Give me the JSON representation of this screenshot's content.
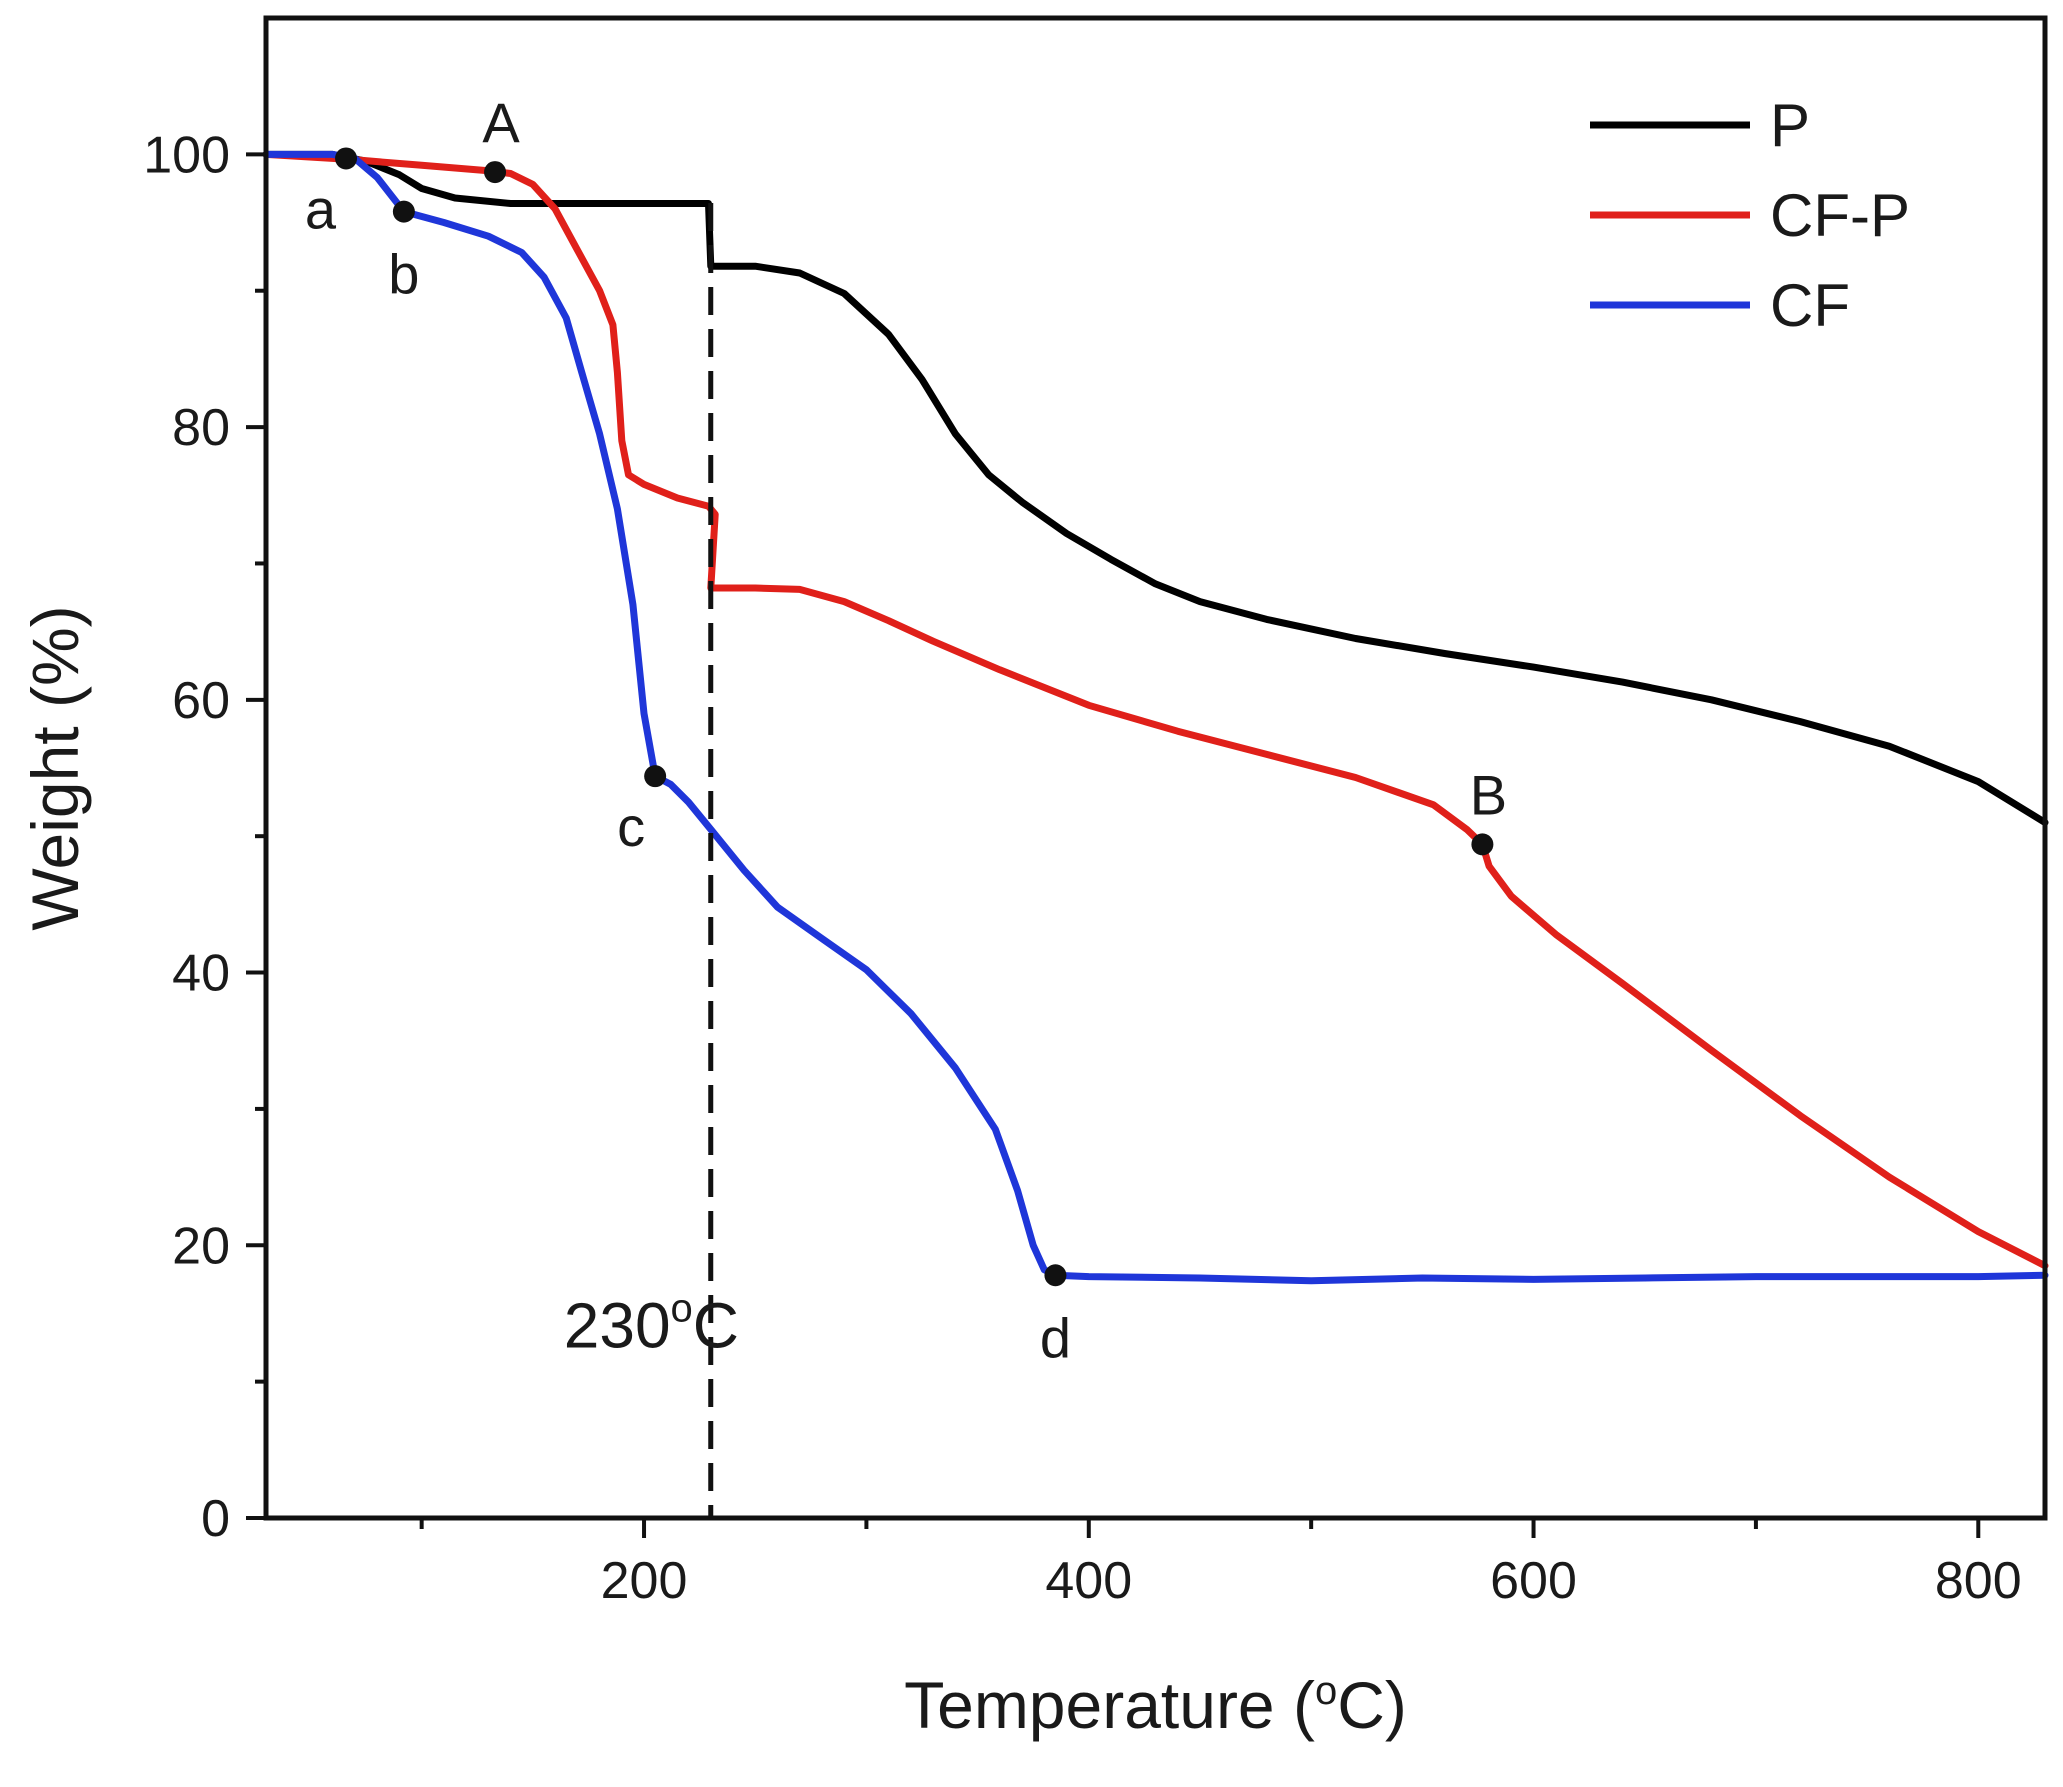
{
  "chart_data": {
    "type": "line",
    "title": "",
    "xlabel": "Temperature (",
    "xlabel_sup": "o",
    "xlabel_end": "C)",
    "ylabel": "Weight (%)",
    "xlim": [
      30,
      830
    ],
    "ylim": [
      0,
      110
    ],
    "xticks": [
      200,
      400,
      600,
      800
    ],
    "xticks_minor": [
      100,
      300,
      500,
      700
    ],
    "yticks": [
      0,
      20,
      40,
      60,
      80,
      100
    ],
    "legend": {
      "position": "top-right"
    },
    "reference_line": {
      "x": 230,
      "label": "230",
      "label_sup": "o",
      "label_end": "C",
      "style": "dashed"
    },
    "series": [
      {
        "name": "P",
        "color": "#000000",
        "points": [
          [
            30,
            100
          ],
          [
            60,
            100
          ],
          [
            75,
            99.5
          ],
          [
            90,
            98.5
          ],
          [
            100,
            97.5
          ],
          [
            115,
            96.8
          ],
          [
            140,
            96.4
          ],
          [
            180,
            96.4
          ],
          [
            229,
            96.4
          ],
          [
            230,
            91.8
          ],
          [
            250,
            91.8
          ],
          [
            270,
            91.3
          ],
          [
            290,
            89.8
          ],
          [
            310,
            86.8
          ],
          [
            325,
            83.5
          ],
          [
            340,
            79.5
          ],
          [
            355,
            76.5
          ],
          [
            370,
            74.5
          ],
          [
            390,
            72.2
          ],
          [
            410,
            70.3
          ],
          [
            430,
            68.5
          ],
          [
            450,
            67.2
          ],
          [
            480,
            65.9
          ],
          [
            520,
            64.5
          ],
          [
            560,
            63.4
          ],
          [
            600,
            62.4
          ],
          [
            640,
            61.3
          ],
          [
            680,
            60
          ],
          [
            720,
            58.4
          ],
          [
            760,
            56.6
          ],
          [
            800,
            54
          ],
          [
            830,
            51
          ]
        ]
      },
      {
        "name": "CF-P",
        "color": "#e0201a",
        "points": [
          [
            30,
            100
          ],
          [
            70,
            99.6
          ],
          [
            100,
            99.2
          ],
          [
            130,
            98.8
          ],
          [
            140,
            98.6
          ],
          [
            150,
            97.8
          ],
          [
            160,
            96
          ],
          [
            170,
            93
          ],
          [
            180,
            90
          ],
          [
            186,
            87.5
          ],
          [
            188,
            84
          ],
          [
            190,
            79
          ],
          [
            193,
            76.5
          ],
          [
            200,
            75.8
          ],
          [
            215,
            74.8
          ],
          [
            229,
            74.2
          ],
          [
            232,
            73.6
          ],
          [
            230,
            68.2
          ],
          [
            250,
            68.2
          ],
          [
            270,
            68.1
          ],
          [
            290,
            67.2
          ],
          [
            310,
            65.8
          ],
          [
            330,
            64.3
          ],
          [
            360,
            62.2
          ],
          [
            400,
            59.6
          ],
          [
            440,
            57.7
          ],
          [
            480,
            56
          ],
          [
            520,
            54.3
          ],
          [
            555,
            52.3
          ],
          [
            570,
            50.5
          ],
          [
            577,
            49.4
          ],
          [
            580,
            47.8
          ],
          [
            590,
            45.6
          ],
          [
            610,
            42.8
          ],
          [
            640,
            39.2
          ],
          [
            680,
            34.3
          ],
          [
            720,
            29.5
          ],
          [
            760,
            25
          ],
          [
            800,
            21
          ],
          [
            830,
            18.5
          ]
        ]
      },
      {
        "name": "CF",
        "color": "#1f36d9",
        "points": [
          [
            30,
            100
          ],
          [
            60,
            100
          ],
          [
            70,
            99.7
          ],
          [
            80,
            98.3
          ],
          [
            92,
            95.8
          ],
          [
            110,
            95
          ],
          [
            130,
            94
          ],
          [
            145,
            92.8
          ],
          [
            155,
            91
          ],
          [
            165,
            88
          ],
          [
            172,
            84
          ],
          [
            180,
            79.5
          ],
          [
            188,
            74
          ],
          [
            195,
            67
          ],
          [
            200,
            59
          ],
          [
            205,
            54.4
          ],
          [
            212,
            53.8
          ],
          [
            220,
            52.5
          ],
          [
            230,
            50.5
          ],
          [
            245,
            47.5
          ],
          [
            260,
            44.8
          ],
          [
            280,
            42.5
          ],
          [
            300,
            40.2
          ],
          [
            320,
            37
          ],
          [
            340,
            33
          ],
          [
            358,
            28.5
          ],
          [
            368,
            24
          ],
          [
            375,
            20
          ],
          [
            380,
            18.2
          ],
          [
            385,
            17.8
          ],
          [
            400,
            17.7
          ],
          [
            450,
            17.6
          ],
          [
            500,
            17.4
          ],
          [
            550,
            17.6
          ],
          [
            600,
            17.5
          ],
          [
            650,
            17.6
          ],
          [
            700,
            17.7
          ],
          [
            750,
            17.7
          ],
          [
            800,
            17.7
          ],
          [
            830,
            17.8
          ]
        ]
      }
    ],
    "annotations": [
      {
        "label": "a",
        "series": "CF",
        "x": 66,
        "y": 99.7,
        "label_side": "below-left"
      },
      {
        "label": "b",
        "series": "CF",
        "x": 92,
        "y": 95.8,
        "label_side": "below"
      },
      {
        "label": "c",
        "series": "CF",
        "x": 205,
        "y": 54.4,
        "label_side": "below-left"
      },
      {
        "label": "d",
        "series": "CF",
        "x": 385,
        "y": 17.8,
        "label_side": "below"
      },
      {
        "label": "A",
        "series": "CF-P",
        "x": 133,
        "y": 98.7,
        "label_side": "above"
      },
      {
        "label": "B",
        "series": "CF-P",
        "x": 577,
        "y": 49.4,
        "label_side": "above"
      }
    ]
  }
}
